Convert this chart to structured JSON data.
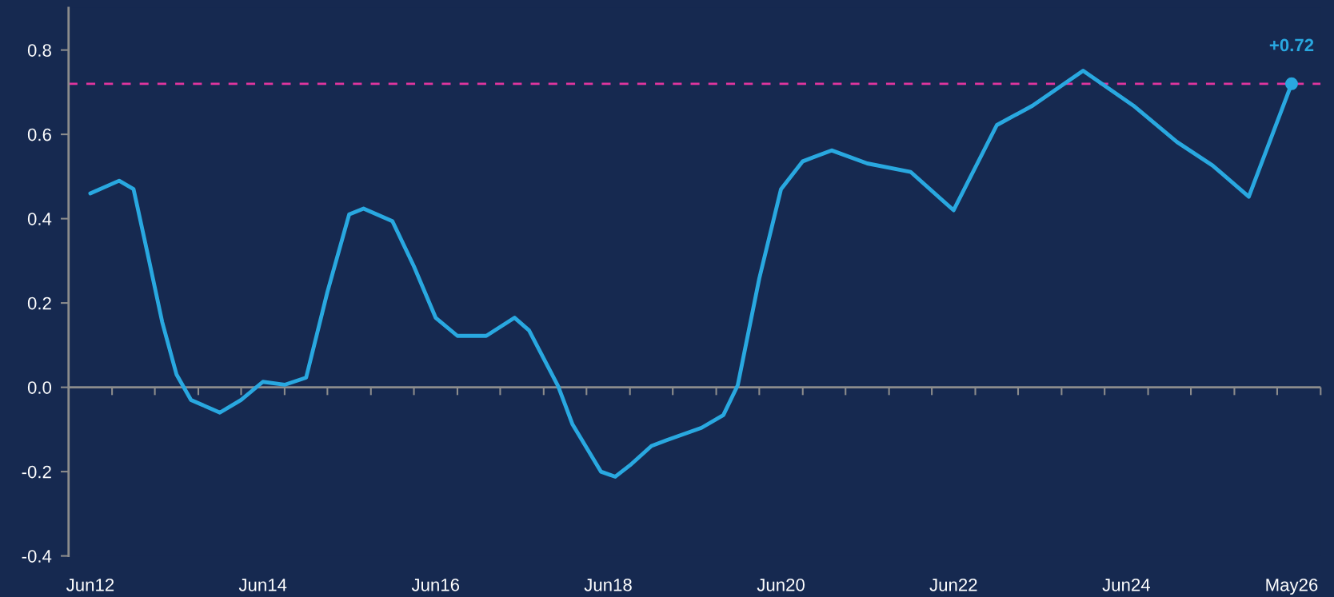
{
  "chart_data": {
    "type": "line",
    "x": [
      "2012-06",
      "2012-10",
      "2012-12",
      "2013-02",
      "2013-04",
      "2013-06",
      "2013-08",
      "2013-12",
      "2014-03",
      "2014-06",
      "2014-09",
      "2014-12",
      "2015-03",
      "2015-06",
      "2015-08",
      "2015-12",
      "2016-03",
      "2016-06",
      "2016-09",
      "2017-01",
      "2017-05",
      "2017-07",
      "2017-11",
      "2018-01",
      "2018-05",
      "2018-07",
      "2018-09",
      "2018-12",
      "2019-02",
      "2019-07",
      "2019-10",
      "2019-12",
      "2020-03",
      "2020-06",
      "2020-09",
      "2021-01",
      "2021-06",
      "2021-12",
      "2022-06",
      "2022-12",
      "2023-05",
      "2023-12",
      "2024-07",
      "2025-01",
      "2025-06",
      "2025-11",
      "2026-05"
    ],
    "series": [
      {
        "color": "#29a8e0",
        "values": [
          0.46,
          0.49,
          0.47,
          0.31,
          0.155,
          0.03,
          -0.03,
          -0.06,
          -0.03,
          0.013,
          0.006,
          0.023,
          0.226,
          0.41,
          0.424,
          0.394,
          0.287,
          0.165,
          0.122,
          0.122,
          0.165,
          0.135,
          0.003,
          -0.088,
          -0.2,
          -0.212,
          -0.185,
          -0.139,
          -0.126,
          -0.096,
          -0.066,
          0.005,
          0.258,
          0.47,
          0.536,
          0.562,
          0.531,
          0.511,
          0.42,
          0.622,
          0.668,
          0.751,
          0.668,
          0.582,
          0.526,
          0.452,
          0.72
        ]
      }
    ],
    "xlim": [
      "2012-03",
      "2026-09"
    ],
    "xticks": [
      {
        "value": "2012-06",
        "label": "Jun12"
      },
      {
        "value": "2014-06",
        "label": "Jun14"
      },
      {
        "value": "2016-06",
        "label": "Jun16"
      },
      {
        "value": "2018-06",
        "label": "Jun18"
      },
      {
        "value": "2020-06",
        "label": "Jun20"
      },
      {
        "value": "2022-06",
        "label": "Jun22"
      },
      {
        "value": "2024-06",
        "label": "Jun24"
      },
      {
        "value": "2026-05",
        "label": "May26"
      },
      {
        "value": "2012-09",
        "label": null
      },
      {
        "value": "2013-03",
        "label": null
      },
      {
        "value": "2013-09",
        "label": null
      },
      {
        "value": "2014-03",
        "label": null
      },
      {
        "value": "2014-09",
        "label": null
      },
      {
        "value": "2015-03",
        "label": null
      },
      {
        "value": "2015-09",
        "label": null
      },
      {
        "value": "2016-03",
        "label": null
      },
      {
        "value": "2016-09",
        "label": null
      },
      {
        "value": "2017-03",
        "label": null
      },
      {
        "value": "2017-09",
        "label": null
      },
      {
        "value": "2018-03",
        "label": null
      },
      {
        "value": "2018-09",
        "label": null
      },
      {
        "value": "2019-03",
        "label": null
      },
      {
        "value": "2019-09",
        "label": null
      },
      {
        "value": "2020-03",
        "label": null
      },
      {
        "value": "2020-09",
        "label": null
      },
      {
        "value": "2021-03",
        "label": null
      },
      {
        "value": "2021-09",
        "label": null
      },
      {
        "value": "2022-03",
        "label": null
      },
      {
        "value": "2022-09",
        "label": null
      },
      {
        "value": "2023-03",
        "label": null
      },
      {
        "value": "2023-09",
        "label": null
      },
      {
        "value": "2024-03",
        "label": null
      },
      {
        "value": "2024-09",
        "label": null
      },
      {
        "value": "2025-03",
        "label": null
      },
      {
        "value": "2025-09",
        "label": null
      },
      {
        "value": "2026-03",
        "label": null
      },
      {
        "value": "2026-09",
        "label": null
      }
    ],
    "ylim": [
      -0.4,
      0.9
    ],
    "yticks": [
      -0.4,
      -0.2,
      {
        "value": 0,
        "label": "0.0"
      },
      0.2,
      0.4,
      0.6,
      0.8
    ],
    "ref_lines": [
      {
        "axis": "y",
        "value": 0.72,
        "color": "#e0359f",
        "line_style": "dashed"
      },
      {
        "axis": "y",
        "value": 0,
        "color": "#8c8c8c",
        "line_style": "solid"
      }
    ],
    "annotations": [
      {
        "text": "+0.72",
        "x": "2026-05",
        "y": 0.72
      }
    ],
    "grid": false,
    "legend": false,
    "marker": "none",
    "line_style": "solid"
  }
}
